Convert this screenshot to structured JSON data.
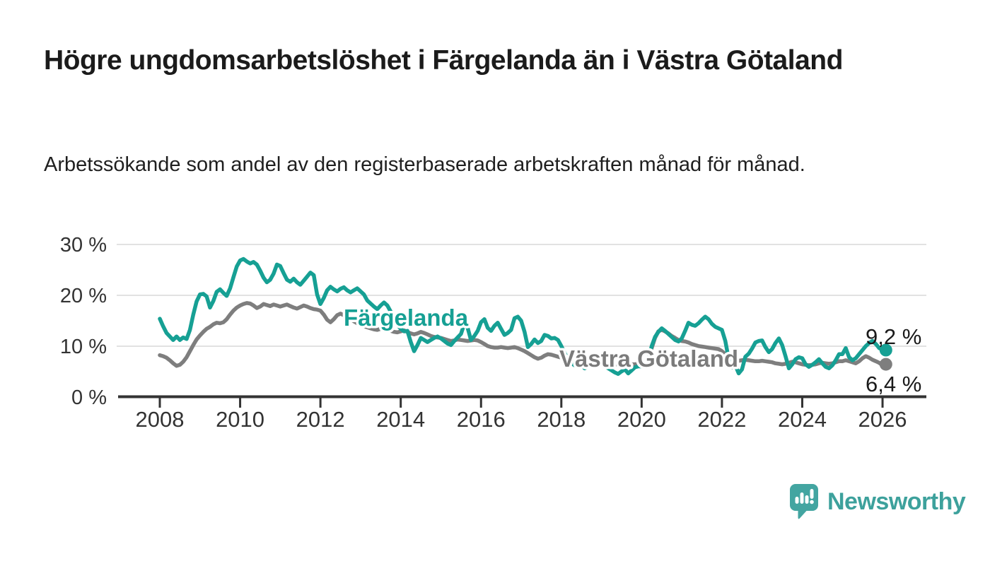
{
  "title": "Högre ungdomsarbetslöshet i Färgelanda än i Västra Götaland",
  "subtitle": "Arbetssökande som andel av den registerbaserade arbetskraften månad för månad.",
  "branding": {
    "logo_text": "Newsworthy",
    "logo_color": "#3da19c"
  },
  "chart_data": {
    "type": "line",
    "title": "Högre ungdomsarbetslöshet i Färgelanda än i Västra Götaland",
    "subtitle": "Arbetssökande som andel av den registerbaserade arbetskraften månad för månad.",
    "unit": "%",
    "grid": "horizontal",
    "legend_position": "inline-labels",
    "x_start": "2008-01",
    "x_end": "2026-02",
    "x_step": "month",
    "x_tick_labels": [
      "2008",
      "2010",
      "2012",
      "2014",
      "2016",
      "2018",
      "2020",
      "2022",
      "2024",
      "2026"
    ],
    "x_ticks": [
      2008,
      2010,
      2012,
      2014,
      2016,
      2018,
      2020,
      2022,
      2024,
      2026
    ],
    "y_tick_labels": [
      "30 %",
      "20 %",
      "10 %",
      "0 %"
    ],
    "y_ticks": [
      0,
      10,
      20,
      30
    ],
    "ylim": [
      0,
      32
    ],
    "series": [
      {
        "name": "Färgelanda",
        "color": "#16a094",
        "end_label": "9,2 %",
        "last_value": 9.2,
        "values": [
          15.4,
          13.9,
          12.6,
          11.9,
          11.2,
          11.9,
          11.2,
          11.7,
          11.4,
          13.2,
          16.2,
          18.8,
          20.2,
          20.3,
          19.8,
          17.6,
          18.9,
          20.7,
          21.2,
          20.5,
          19.9,
          21.4,
          23.6,
          25.7,
          26.9,
          27.2,
          26.7,
          26.3,
          26.6,
          26.1,
          24.9,
          23.5,
          22.6,
          23.1,
          24.3,
          26.1,
          25.8,
          24.4,
          23.1,
          22.7,
          23.3,
          22.6,
          22.1,
          22.9,
          23.7,
          24.5,
          24.0,
          20.2,
          18.3,
          19.5,
          21.0,
          21.7,
          21.2,
          20.8,
          21.3,
          21.6,
          21.0,
          20.6,
          21.0,
          21.4,
          20.8,
          20.2,
          19.0,
          18.4,
          17.8,
          17.3,
          18.0,
          18.6,
          18.0,
          16.8,
          15.5,
          14.2,
          13.4,
          12.9,
          13.0,
          10.8,
          9.0,
          10.2,
          11.6,
          11.2,
          10.8,
          11.2,
          11.6,
          11.9,
          11.5,
          11.0,
          10.5,
          10.2,
          11.0,
          11.7,
          12.4,
          14.4,
          13.6,
          11.2,
          12.0,
          13.0,
          14.7,
          15.3,
          13.6,
          13.0,
          14.0,
          14.6,
          13.4,
          12.2,
          12.6,
          13.2,
          15.5,
          15.8,
          15.0,
          12.8,
          9.8,
          10.4,
          11.3,
          10.6,
          11.0,
          12.2,
          12.0,
          11.5,
          11.6,
          11.2,
          10.0,
          8.6,
          7.4,
          6.6,
          6.2,
          6.8,
          6.2,
          5.6,
          6.0,
          6.4,
          6.6,
          6.2,
          6.4,
          6.0,
          5.6,
          5.2,
          4.8,
          4.5,
          5.0,
          5.4,
          4.6,
          5.2,
          5.8,
          6.0,
          6.0,
          6.1,
          7.5,
          10.0,
          11.8,
          12.8,
          13.5,
          13.0,
          12.4,
          11.8,
          11.2,
          10.9,
          11.5,
          13.0,
          14.6,
          14.2,
          14.0,
          14.5,
          15.2,
          15.8,
          15.3,
          14.4,
          13.8,
          13.5,
          13.2,
          11.0,
          7.5,
          5.8,
          6.2,
          4.6,
          5.4,
          7.9,
          8.5,
          9.5,
          10.7,
          11.0,
          11.1,
          9.8,
          8.8,
          9.4,
          10.6,
          11.5,
          10.2,
          8.0,
          5.6,
          6.4,
          7.4,
          7.8,
          7.6,
          6.4,
          5.9,
          6.3,
          6.8,
          7.4,
          6.6,
          5.9,
          5.6,
          6.2,
          7.2,
          8.4,
          8.4,
          9.6,
          7.8,
          7.2,
          7.6,
          8.4,
          9.2,
          10.0,
          10.6,
          11.0,
          10.4,
          9.6,
          9.3,
          9.2
        ]
      },
      {
        "name": "Västra Götaland",
        "color": "#7e7e7e",
        "end_label": "6,4 %",
        "last_value": 6.4,
        "values": [
          8.2,
          8.0,
          7.7,
          7.2,
          6.6,
          6.1,
          6.3,
          6.9,
          7.8,
          9.0,
          10.2,
          11.3,
          12.1,
          12.8,
          13.4,
          13.8,
          14.3,
          14.6,
          14.5,
          14.7,
          15.3,
          16.2,
          17.0,
          17.6,
          18.0,
          18.3,
          18.5,
          18.4,
          18.0,
          17.5,
          17.8,
          18.3,
          18.1,
          17.9,
          18.2,
          18.0,
          17.8,
          18.0,
          18.2,
          17.9,
          17.6,
          17.4,
          17.7,
          18.0,
          17.8,
          17.5,
          17.3,
          17.2,
          17.0,
          16.2,
          15.2,
          14.7,
          15.3,
          16.1,
          16.4,
          16.1,
          15.7,
          15.3,
          14.9,
          14.5,
          14.2,
          13.9,
          13.7,
          13.5,
          13.3,
          13.2,
          13.4,
          13.6,
          13.3,
          13.0,
          12.8,
          12.7,
          12.9,
          13.1,
          12.8,
          12.5,
          12.3,
          12.5,
          12.8,
          12.6,
          12.3,
          12.0,
          11.8,
          11.7,
          11.6,
          11.4,
          11.2,
          11.0,
          11.1,
          11.3,
          11.2,
          11.1,
          11.0,
          11.1,
          11.2,
          11.1,
          10.8,
          10.4,
          10.0,
          9.8,
          9.7,
          9.7,
          9.8,
          9.7,
          9.6,
          9.7,
          9.8,
          9.6,
          9.3,
          9.0,
          8.6,
          8.2,
          7.8,
          7.5,
          7.7,
          8.1,
          8.4,
          8.3,
          8.1,
          7.9,
          7.7,
          7.5,
          7.3,
          7.1,
          7.0,
          6.9,
          7.0,
          7.2,
          7.1,
          7.0,
          6.9,
          6.8,
          6.8,
          6.7,
          6.6,
          6.5,
          6.4,
          6.4,
          6.5,
          6.6,
          6.5,
          6.4,
          6.4,
          6.5,
          6.6,
          6.7,
          7.4,
          9.6,
          11.6,
          12.9,
          13.2,
          12.9,
          12.5,
          12.0,
          11.6,
          11.2,
          11.0,
          10.9,
          10.7,
          10.4,
          10.2,
          10.0,
          9.9,
          9.8,
          9.7,
          9.6,
          9.5,
          9.4,
          9.0,
          8.4,
          7.8,
          7.4,
          7.2,
          7.1,
          7.2,
          7.3,
          7.2,
          7.1,
          7.0,
          7.0,
          7.1,
          7.0,
          6.9,
          6.8,
          6.6,
          6.5,
          6.4,
          6.5,
          6.7,
          6.9,
          6.8,
          6.6,
          6.4,
          6.3,
          6.2,
          6.3,
          6.4,
          6.6,
          6.7,
          6.6,
          6.5,
          6.6,
          6.8,
          7.0,
          7.0,
          7.2,
          7.0,
          6.8,
          6.6,
          7.0,
          7.6,
          8.0,
          7.7,
          7.3,
          7.0,
          6.7,
          6.2,
          6.4
        ]
      }
    ]
  }
}
